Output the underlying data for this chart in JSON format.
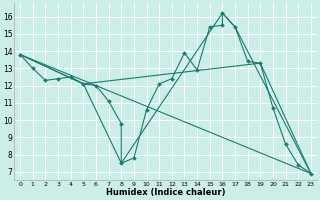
{
  "xlabel": "Humidex (Indice chaleur)",
  "bg_color": "#cceee8",
  "grid_color": "#ffffff",
  "line_color": "#1a7a6e",
  "marker_color": "#1a7a6e",
  "xlim": [
    -0.5,
    23.5
  ],
  "ylim": [
    6.5,
    16.8
  ],
  "xticks": [
    0,
    1,
    2,
    3,
    4,
    5,
    6,
    7,
    8,
    9,
    10,
    11,
    12,
    13,
    14,
    15,
    16,
    17,
    18,
    19,
    20,
    21,
    22,
    23
  ],
  "yticks": [
    7,
    8,
    9,
    10,
    11,
    12,
    13,
    14,
    15,
    16
  ],
  "main_line": [
    [
      0,
      13.8
    ],
    [
      1,
      13.0
    ],
    [
      2,
      12.3
    ],
    [
      3,
      12.4
    ],
    [
      4,
      12.5
    ],
    [
      5,
      12.1
    ],
    [
      6,
      12.0
    ],
    [
      7,
      11.1
    ],
    [
      8,
      9.8
    ],
    [
      8,
      7.5
    ],
    [
      9,
      7.8
    ],
    [
      10,
      10.6
    ],
    [
      11,
      12.1
    ],
    [
      12,
      12.4
    ],
    [
      13,
      13.9
    ],
    [
      14,
      12.9
    ],
    [
      15,
      15.4
    ],
    [
      16,
      15.5
    ],
    [
      16,
      16.2
    ],
    [
      17,
      15.4
    ],
    [
      18,
      13.4
    ],
    [
      19,
      13.3
    ],
    [
      20,
      10.7
    ],
    [
      21,
      8.6
    ],
    [
      22,
      7.4
    ],
    [
      23,
      6.9
    ]
  ],
  "fan_lines": [
    [
      [
        0,
        13.8
      ],
      [
        23,
        6.9
      ]
    ],
    [
      [
        0,
        13.8
      ],
      [
        5,
        12.1
      ],
      [
        19,
        13.3
      ],
      [
        23,
        6.9
      ]
    ],
    [
      [
        0,
        13.8
      ],
      [
        5,
        12.1
      ],
      [
        8,
        7.5
      ],
      [
        16,
        16.2
      ],
      [
        17,
        15.4
      ],
      [
        23,
        6.9
      ]
    ]
  ]
}
